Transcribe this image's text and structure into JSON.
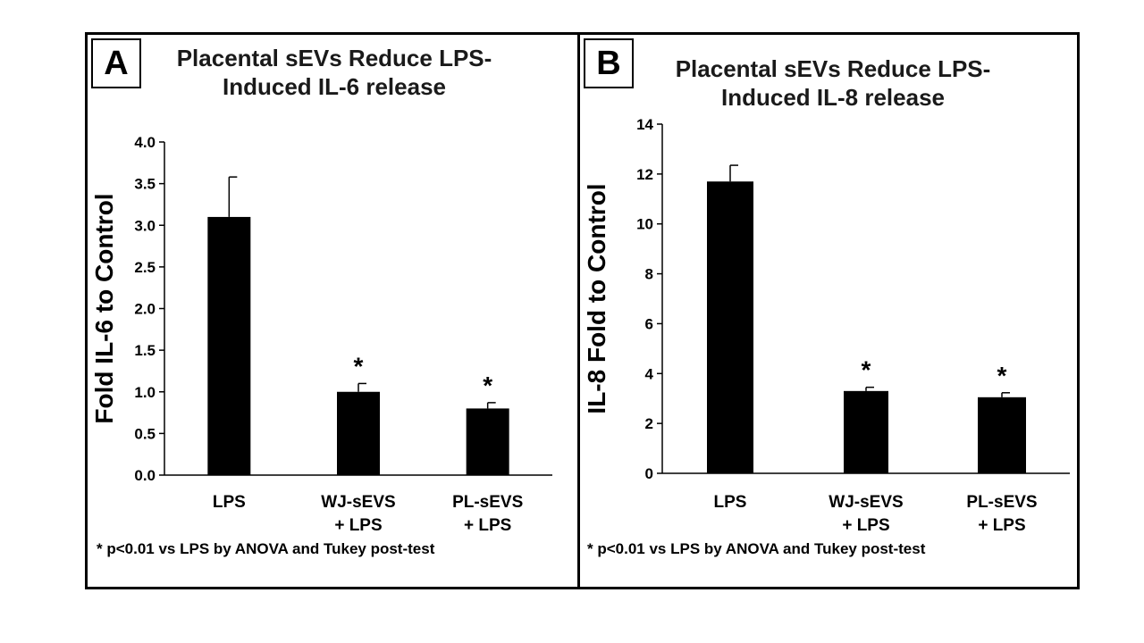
{
  "panels": [
    {
      "letter": "A",
      "title_line1": "Placental sEVs Reduce LPS-",
      "title_line2": "Induced IL-6 release",
      "footnote": "* p<0.01 vs LPS by ANOVA  and Tukey post-test"
    },
    {
      "letter": "B",
      "title_line1": "Placental sEVs Reduce LPS-",
      "title_line2": "Induced IL-8 release",
      "footnote": "* p<0.01 vs LPS by ANOVA  and Tukey post-test"
    }
  ],
  "chart_data": [
    {
      "type": "bar",
      "title": "Placental sEVs Reduce LPS- Induced IL-6 release",
      "ylabel": "Fold IL-6 to Control",
      "xlabel": "",
      "ylim": [
        0,
        4
      ],
      "yticks": [
        "0.0",
        "0.5",
        "1.0",
        "1.5",
        "2.0",
        "2.5",
        "3.0",
        "3.5",
        "4.0"
      ],
      "categories": [
        [
          "LPS"
        ],
        [
          "WJ-sEVS",
          "+ LPS"
        ],
        [
          "PL-sEVS",
          "+ LPS"
        ]
      ],
      "values": [
        3.1,
        1.0,
        0.8
      ],
      "errors": [
        0.48,
        0.1,
        0.07
      ],
      "significance": [
        "",
        "*",
        "*"
      ],
      "bar_color": "#000000"
    },
    {
      "type": "bar",
      "title": "Placental sEVs Reduce LPS- Induced IL-8 release",
      "ylabel": "IL-8 Fold to Control",
      "xlabel": "",
      "ylim": [
        0,
        14
      ],
      "yticks": [
        "0",
        "2",
        "4",
        "6",
        "8",
        "10",
        "12",
        "14"
      ],
      "categories": [
        [
          "LPS"
        ],
        [
          "WJ-sEVS",
          "+ LPS"
        ],
        [
          "PL-sEVS",
          "+ LPS"
        ]
      ],
      "values": [
        11.7,
        3.3,
        3.05
      ],
      "errors": [
        0.65,
        0.15,
        0.18
      ],
      "significance": [
        "",
        "*",
        "*"
      ],
      "bar_color": "#000000"
    }
  ]
}
